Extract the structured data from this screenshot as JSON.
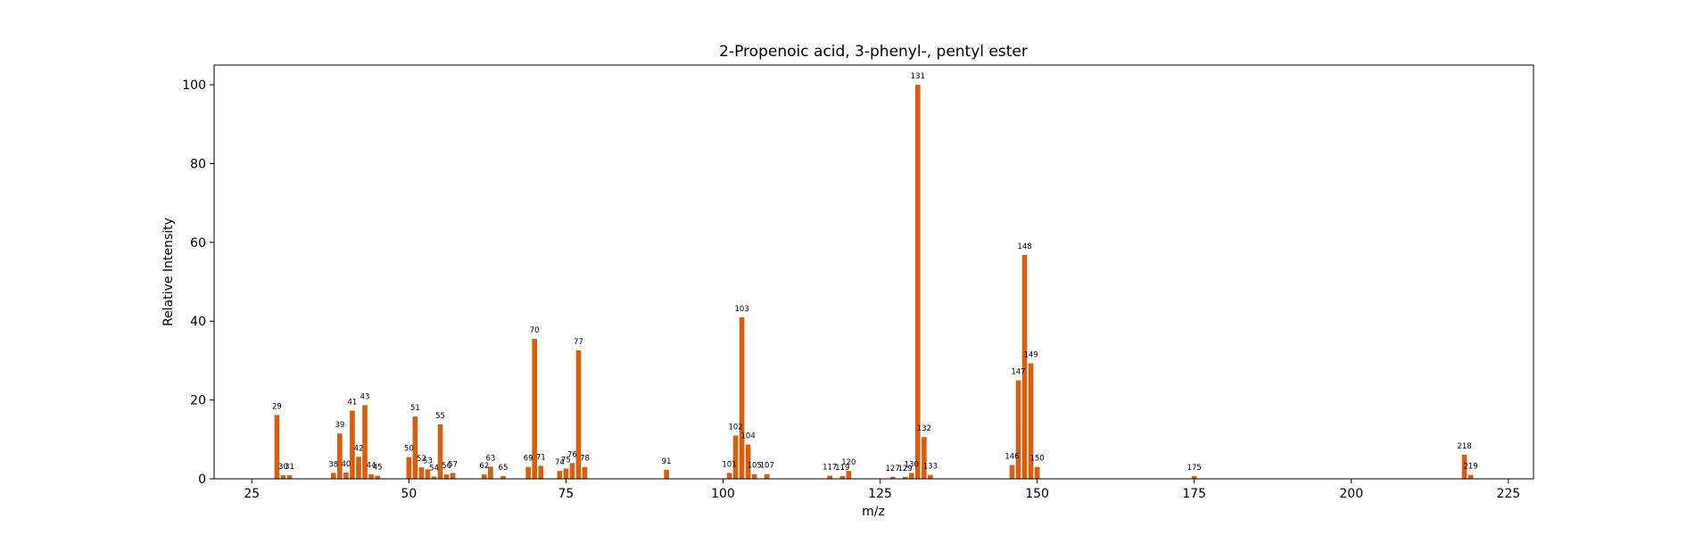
{
  "chart_data": {
    "type": "bar",
    "title": "2-Propenoic acid, 3-phenyl-, pentyl ester",
    "xlabel": "m/z",
    "ylabel": "Relative Intensity",
    "xlim": [
      19,
      229
    ],
    "ylim": [
      0,
      105
    ],
    "xticks": [
      25,
      50,
      75,
      100,
      125,
      150,
      175,
      200,
      225
    ],
    "yticks": [
      0,
      20,
      40,
      60,
      80,
      100
    ],
    "grid": false,
    "bar_color": "#d95f0e",
    "peaks": [
      {
        "mz": 29,
        "intensity": 16.2,
        "label": "29"
      },
      {
        "mz": 30,
        "intensity": 0.9,
        "label": "30"
      },
      {
        "mz": 31,
        "intensity": 0.9,
        "label": "31"
      },
      {
        "mz": 38,
        "intensity": 1.5,
        "label": "38"
      },
      {
        "mz": 39,
        "intensity": 11.5,
        "label": "39"
      },
      {
        "mz": 40,
        "intensity": 1.6,
        "label": "40"
      },
      {
        "mz": 41,
        "intensity": 17.3,
        "label": "41"
      },
      {
        "mz": 42,
        "intensity": 5.6,
        "label": "42"
      },
      {
        "mz": 43,
        "intensity": 18.7,
        "label": "43"
      },
      {
        "mz": 44,
        "intensity": 1.2,
        "label": "44"
      },
      {
        "mz": 45,
        "intensity": 0.8,
        "label": "45"
      },
      {
        "mz": 50,
        "intensity": 5.5,
        "label": "50"
      },
      {
        "mz": 51,
        "intensity": 15.8,
        "label": "51"
      },
      {
        "mz": 52,
        "intensity": 2.9,
        "label": "52"
      },
      {
        "mz": 53,
        "intensity": 2.4,
        "label": "53"
      },
      {
        "mz": 54,
        "intensity": 0.6,
        "label": "54"
      },
      {
        "mz": 55,
        "intensity": 13.8,
        "label": "55"
      },
      {
        "mz": 56,
        "intensity": 1.1,
        "label": "56"
      },
      {
        "mz": 57,
        "intensity": 1.5,
        "label": "57"
      },
      {
        "mz": 62,
        "intensity": 1.1,
        "label": "62"
      },
      {
        "mz": 63,
        "intensity": 3.1,
        "label": "63"
      },
      {
        "mz": 65,
        "intensity": 0.7,
        "label": "65"
      },
      {
        "mz": 69,
        "intensity": 3.0,
        "label": "69"
      },
      {
        "mz": 70,
        "intensity": 35.5,
        "label": "70"
      },
      {
        "mz": 71,
        "intensity": 3.3,
        "label": "71"
      },
      {
        "mz": 74,
        "intensity": 2.0,
        "label": "74"
      },
      {
        "mz": 75,
        "intensity": 2.6,
        "label": "75"
      },
      {
        "mz": 76,
        "intensity": 4.0,
        "label": "76"
      },
      {
        "mz": 77,
        "intensity": 32.6,
        "label": "77"
      },
      {
        "mz": 78,
        "intensity": 3.0,
        "label": "78"
      },
      {
        "mz": 91,
        "intensity": 2.3,
        "label": "91"
      },
      {
        "mz": 101,
        "intensity": 1.5,
        "label": "101"
      },
      {
        "mz": 102,
        "intensity": 11.0,
        "label": "102"
      },
      {
        "mz": 103,
        "intensity": 41.0,
        "label": "103"
      },
      {
        "mz": 104,
        "intensity": 8.7,
        "label": "104"
      },
      {
        "mz": 105,
        "intensity": 1.2,
        "label": "105"
      },
      {
        "mz": 107,
        "intensity": 1.2,
        "label": "107"
      },
      {
        "mz": 117,
        "intensity": 0.8,
        "label": "117"
      },
      {
        "mz": 119,
        "intensity": 0.7,
        "label": "119"
      },
      {
        "mz": 120,
        "intensity": 2.0,
        "label": "120"
      },
      {
        "mz": 127,
        "intensity": 0.5,
        "label": "127"
      },
      {
        "mz": 129,
        "intensity": 0.5,
        "label": "129"
      },
      {
        "mz": 130,
        "intensity": 1.5,
        "label": "130"
      },
      {
        "mz": 131,
        "intensity": 100.0,
        "label": "131"
      },
      {
        "mz": 132,
        "intensity": 10.6,
        "label": "132"
      },
      {
        "mz": 133,
        "intensity": 1.0,
        "label": "133"
      },
      {
        "mz": 146,
        "intensity": 3.5,
        "label": "146"
      },
      {
        "mz": 147,
        "intensity": 25.0,
        "label": "147"
      },
      {
        "mz": 148,
        "intensity": 56.8,
        "label": "148"
      },
      {
        "mz": 149,
        "intensity": 29.3,
        "label": "149"
      },
      {
        "mz": 150,
        "intensity": 3.0,
        "label": "150"
      },
      {
        "mz": 175,
        "intensity": 0.7,
        "label": "175"
      },
      {
        "mz": 218,
        "intensity": 6.1,
        "label": "218"
      },
      {
        "mz": 219,
        "intensity": 1.0,
        "label": "219"
      }
    ]
  }
}
